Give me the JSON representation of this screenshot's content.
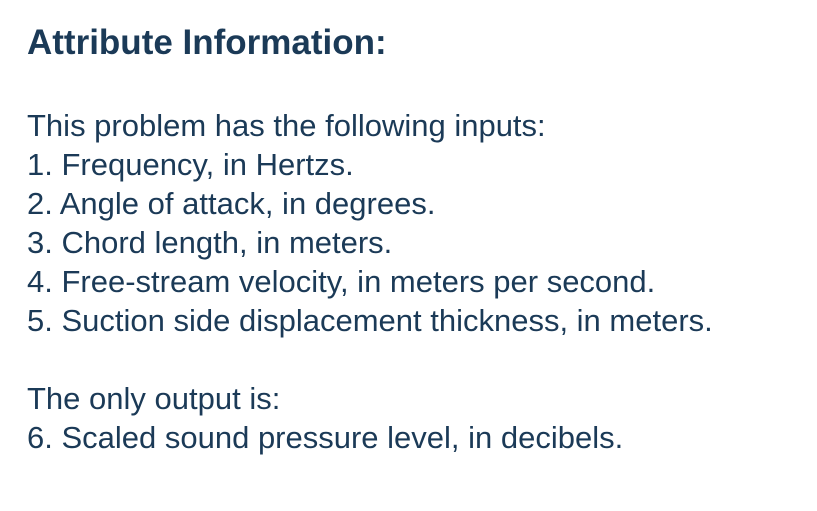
{
  "heading": "Attribute Information:",
  "inputs_intro": "This problem has the following inputs:",
  "inputs": [
    "1. Frequency, in Hertzs.",
    "2. Angle of attack, in degrees.",
    "3. Chord length, in meters.",
    "4. Free-stream velocity, in meters per second.",
    "5. Suction side displacement thickness, in meters."
  ],
  "output_intro": "The only output is:",
  "outputs": [
    "6. Scaled sound pressure level, in decibels."
  ],
  "colors": {
    "text": "#1b3a57",
    "background": "#ffffff"
  }
}
